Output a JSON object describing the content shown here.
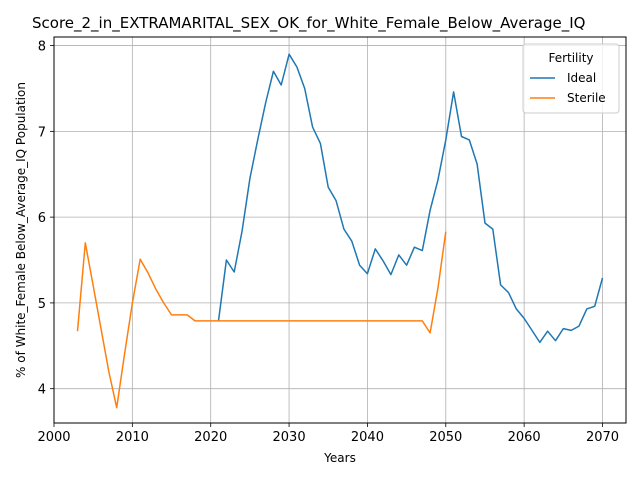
{
  "chart_data": {
    "type": "line",
    "title": "Score_2_in_EXTRAMARITAL_SEX_OK_for_White_Female_Below_Average_IQ",
    "xlabel": "Years",
    "ylabel": "% of White_Female Below_Average_IQ Population",
    "xlim": [
      2000,
      2073
    ],
    "ylim": [
      3.6,
      8.1
    ],
    "xticks": [
      2000,
      2010,
      2020,
      2030,
      2040,
      2050,
      2060,
      2070
    ],
    "yticks": [
      4,
      5,
      6,
      7,
      8
    ],
    "grid": true,
    "legend": {
      "title": "Fertility",
      "placement": "top-right"
    },
    "series": [
      {
        "name": "Ideal",
        "color": "#1f77b4",
        "x": [
          2021,
          2022,
          2023,
          2024,
          2025,
          2026,
          2027,
          2028,
          2029,
          2030,
          2031,
          2032,
          2033,
          2034,
          2035,
          2036,
          2037,
          2038,
          2039,
          2040,
          2041,
          2042,
          2043,
          2044,
          2045,
          2046,
          2047,
          2048,
          2049,
          2050,
          2051,
          2052,
          2053,
          2054,
          2055,
          2056,
          2057,
          2058,
          2059,
          2060,
          2061,
          2062,
          2063,
          2064,
          2065,
          2066,
          2067,
          2068,
          2069,
          2070
        ],
        "y": [
          4.79,
          5.5,
          5.36,
          5.84,
          6.45,
          6.9,
          7.33,
          7.7,
          7.54,
          7.9,
          7.75,
          7.5,
          7.05,
          6.86,
          6.35,
          6.19,
          5.86,
          5.72,
          5.44,
          5.34,
          5.63,
          5.49,
          5.33,
          5.56,
          5.44,
          5.65,
          5.61,
          6.08,
          6.43,
          6.9,
          7.46,
          6.94,
          6.9,
          6.62,
          5.93,
          5.86,
          5.21,
          5.12,
          4.93,
          4.82,
          4.68,
          4.54,
          4.67,
          4.56,
          4.7,
          4.68,
          4.73,
          4.93,
          4.96,
          5.29
        ]
      },
      {
        "name": "Sterile",
        "color": "#ff7f0e",
        "x": [
          2003,
          2004,
          2005,
          2006,
          2007,
          2008,
          2009,
          2010,
          2011,
          2012,
          2013,
          2014,
          2015,
          2016,
          2017,
          2018,
          2019,
          2020,
          2021,
          2022,
          2023,
          2024,
          2025,
          2026,
          2027,
          2028,
          2029,
          2030,
          2031,
          2032,
          2033,
          2034,
          2035,
          2036,
          2037,
          2038,
          2039,
          2040,
          2041,
          2042,
          2043,
          2044,
          2045,
          2046,
          2047,
          2048,
          2049,
          2050
        ],
        "y": [
          4.67,
          5.7,
          5.2,
          4.7,
          4.2,
          3.78,
          4.4,
          5.0,
          5.51,
          5.35,
          5.16,
          5.0,
          4.86,
          4.86,
          4.86,
          4.79,
          4.79,
          4.79,
          4.79,
          4.79,
          4.79,
          4.79,
          4.79,
          4.79,
          4.79,
          4.79,
          4.79,
          4.79,
          4.79,
          4.79,
          4.79,
          4.79,
          4.79,
          4.79,
          4.79,
          4.79,
          4.79,
          4.79,
          4.79,
          4.79,
          4.79,
          4.79,
          4.79,
          4.79,
          4.79,
          4.65,
          5.17,
          5.83
        ]
      }
    ]
  }
}
